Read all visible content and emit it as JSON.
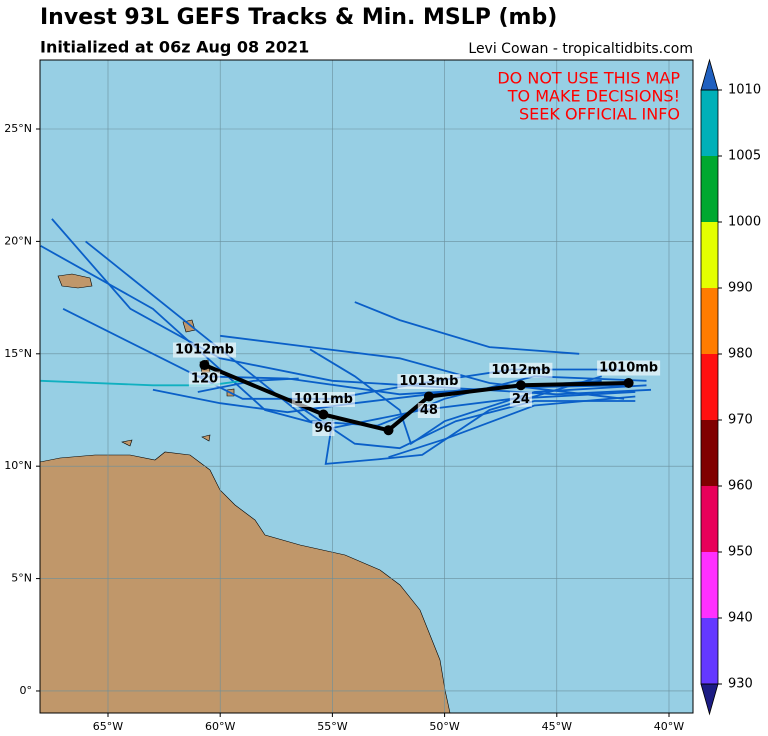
{
  "header": {
    "title": "Invest 93L GEFS Tracks & Min. MSLP (mb)",
    "subtitle": "Initialized at 06z Aug 08 2021",
    "credit": "Levi Cowan - tropicaltidbits.com"
  },
  "map": {
    "warning": [
      "DO NOT USE THIS MAP",
      "TO MAKE DECISIONS!",
      "SEEK OFFICIAL INFO"
    ],
    "lonlim": [
      -68.03,
      -38.93
    ],
    "latlim": [
      -0.98,
      28.07
    ],
    "lonticks": [
      {
        "value": -65,
        "label": "65°W"
      },
      {
        "value": -60,
        "label": "60°W"
      },
      {
        "value": -55,
        "label": "55°W"
      },
      {
        "value": -50,
        "label": "50°W"
      },
      {
        "value": -45,
        "label": "45°W"
      },
      {
        "value": -40,
        "label": "40°W"
      }
    ],
    "latticks": [
      {
        "value": 0,
        "label": "0°"
      },
      {
        "value": 5,
        "label": "5°N"
      },
      {
        "value": 10,
        "label": "10°N"
      },
      {
        "value": 15,
        "label": "15°N"
      },
      {
        "value": 20,
        "label": "20°N"
      },
      {
        "value": 25,
        "label": "25°N"
      }
    ],
    "grid": true,
    "ocean_color": "#97cfe4",
    "land_color": "#c0976a",
    "members": [
      {
        "color": "#0a5fc8",
        "lon": [
          -40.8,
          -45,
          -50,
          -55,
          -60,
          -64,
          -67.5
        ],
        "lat": [
          13.4,
          13.2,
          13.5,
          13.8,
          14.8,
          17,
          21
        ]
      },
      {
        "color": "#0a5fc8",
        "lon": [
          -41,
          -46,
          -50,
          -53,
          -56,
          -61,
          -66
        ],
        "lat": [
          13.8,
          14,
          13,
          11.8,
          12,
          16,
          20
        ]
      },
      {
        "color": "#0a5fc8",
        "lon": [
          -41.5,
          -47,
          -51,
          -55,
          -58,
          -63,
          -68
        ],
        "lat": [
          13.3,
          13,
          12.5,
          11.7,
          12.5,
          17,
          19.8
        ]
      },
      {
        "color": "#0a5fc8",
        "lon": [
          -42,
          -47,
          -51,
          -55,
          -59,
          -63,
          -67
        ],
        "lat": [
          14.3,
          14.3,
          13.7,
          13,
          13,
          15,
          17
        ]
      },
      {
        "color": "#0a5fc8",
        "lon": [
          -41.5,
          -46,
          -49.5,
          -52,
          -54,
          -57
        ],
        "lat": [
          12.9,
          12.9,
          12,
          10.8,
          11,
          13
        ]
      },
      {
        "color": "#0a5fc8",
        "lon": [
          -42,
          -47,
          -52,
          -57,
          -61
        ],
        "lat": [
          13.6,
          13.5,
          13.2,
          13.9,
          14
        ]
      },
      {
        "color": "#0a5fc8",
        "lon": [
          -43,
          -48,
          -51,
          -53,
          -55.3,
          -55
        ],
        "lat": [
          14,
          12.5,
          10.5,
          10.3,
          10.1,
          12
        ]
      },
      {
        "color": "#0a5fc8",
        "lon": [
          -44,
          -48,
          -52,
          -54
        ],
        "lat": [
          15,
          15.3,
          16.5,
          17.3
        ]
      },
      {
        "color": "#0a5fc8",
        "lon": [
          -41,
          -46,
          -50,
          -51.5,
          -52,
          -54,
          -56
        ],
        "lat": [
          13.6,
          13.3,
          12,
          11,
          12.5,
          14,
          15.2
        ]
      },
      {
        "color": "#0a5fc8",
        "lon": [
          -42,
          -48,
          -52,
          -56,
          -60
        ],
        "lat": [
          13,
          13.7,
          14.8,
          15.3,
          15.8
        ]
      },
      {
        "color": "#0a5fc8",
        "lon": [
          -43,
          -49,
          -54,
          -57,
          -60,
          -63
        ],
        "lat": [
          13.8,
          13.4,
          12.8,
          12.4,
          12.8,
          13.4
        ]
      },
      {
        "color": "#0a5fc8",
        "lon": [
          -41.5,
          -46,
          -50,
          -52.5
        ],
        "lat": [
          13.1,
          12.7,
          11.2,
          10.4
        ]
      },
      {
        "color": "#0a5fc8",
        "lon": [
          -61,
          -58.5,
          -56.5
        ],
        "lat": [
          13.3,
          13.8,
          13.9
        ]
      },
      {
        "color": "#10b0c0",
        "lon": [
          -68,
          -63,
          -60.5,
          -59
        ],
        "lat": [
          13.8,
          13.6,
          13.6,
          13.8
        ]
      }
    ],
    "mean_track": {
      "color": "#000000",
      "lon": [
        -41.8,
        -46.6,
        -50.7,
        -52.5,
        -55.4,
        -60.7
      ],
      "lat": [
        13.7,
        13.6,
        13.1,
        11.6,
        12.3,
        14.5
      ],
      "pressure_labels": [
        "1010mb",
        "1012mb",
        "1013mb",
        null,
        "1011mb",
        "1012mb"
      ],
      "hour_labels": [
        null,
        "24",
        "48",
        null,
        "96",
        "120"
      ]
    },
    "colorbar": {
      "levels": [
        930,
        940,
        950,
        960,
        970,
        980,
        990,
        1000,
        1005,
        1010
      ],
      "colors": [
        "#6438ff",
        "#ff30ff",
        "#e8005a",
        "#800000",
        "#ff1010",
        "#ff7c00",
        "#e4ff00",
        "#00a830",
        "#00b0b8"
      ],
      "under_color": "#1c1c84",
      "over_color": "#2060c0"
    }
  }
}
